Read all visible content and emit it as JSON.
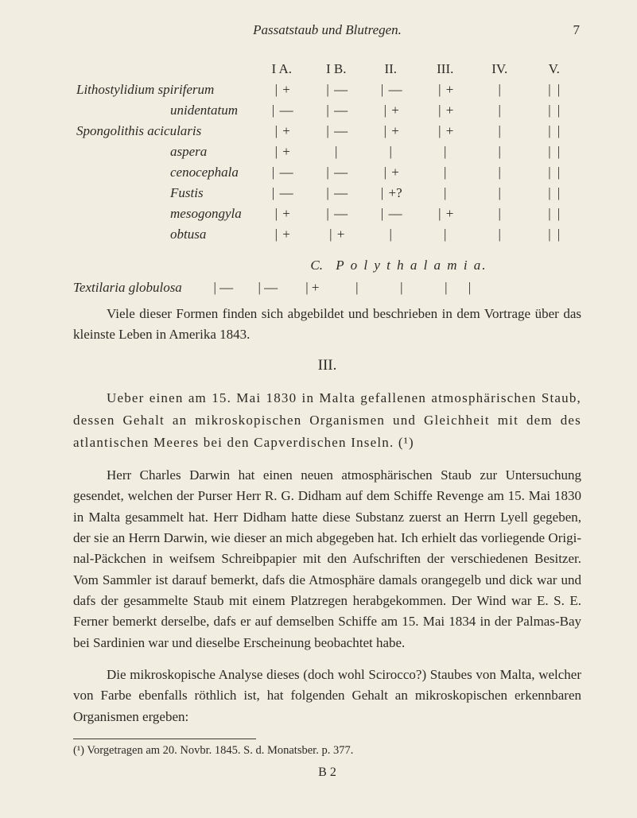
{
  "header": {
    "running_title": "Passatstaub und Blutregen.",
    "page_number": "7"
  },
  "columns": [
    "I A.",
    "I B.",
    "II.",
    "III.",
    "IV.",
    "V."
  ],
  "rows": [
    {
      "name_prefix": "Lithostylidium",
      "name": "spiriferum",
      "cells": [
        "+",
        "—",
        "—",
        "+",
        "",
        ""
      ]
    },
    {
      "name_prefix": "",
      "name": "unidentatum",
      "indent": true,
      "cells": [
        "—",
        "—",
        "+",
        "+",
        "",
        ""
      ]
    },
    {
      "name_prefix": "Spongolithis",
      "name": "acicularis",
      "cells": [
        "+",
        "—",
        "+",
        "+",
        "",
        ""
      ]
    },
    {
      "name_prefix": "",
      "name": "aspera",
      "indent": true,
      "cells": [
        "+",
        "",
        "",
        "",
        "",
        ""
      ]
    },
    {
      "name_prefix": "",
      "name": "cenocephala",
      "indent": true,
      "cells": [
        "—",
        "—",
        "+",
        "",
        "",
        ""
      ]
    },
    {
      "name_prefix": "",
      "name": "Fustis",
      "indent": true,
      "cells": [
        "—",
        "—",
        "+?",
        "",
        "",
        ""
      ]
    },
    {
      "name_prefix": "",
      "name": "mesogongyla",
      "indent": true,
      "cells": [
        "+",
        "—",
        "—",
        "+",
        "",
        ""
      ]
    },
    {
      "name_prefix": "",
      "name": "obtusa",
      "indent": true,
      "cells": [
        "+",
        "+",
        "",
        "",
        "",
        ""
      ]
    }
  ],
  "section_c_label": "C.",
  "section_c_title": "P o l y t h a l a m i a.",
  "poly": {
    "name": "Textilaria globulosa",
    "cells": [
      "—",
      "—",
      "+",
      "",
      "",
      ""
    ]
  },
  "para_after_table": "Viele dieser Formen finden sich abgebildet und beschrieben in dem Vortrage über das kleinste Leben in Amerika 1843.",
  "section_number": "III.",
  "subtitle": "Ueber einen am 15. Mai 1830 in Malta gefallenen atmosphärischen Staub, dessen Gehalt an mikroskopischen Organismen und Gleichheit mit dem des atlantischen Meeres bei den Capver­dischen Inseln. (¹)",
  "para1": "Herr Charles Darwin hat einen neuen atmosphärischen Staub zur Untersuchung gesendet, welchen der Purser Herr R. G. Didham auf dem Schiffe Revenge am 15. Mai 1830 in Malta gesammelt hat. Herr Didham hatte diese Substanz zuerst an Herrn Lyell gegeben, der sie an Herrn Dar­win, wie dieser an mich abgegeben hat. Ich erhielt das vorliegende Origi­nal-Päckchen in weifsem Schreibpapier mit den Aufschriften der verschiedenen Besitzer. Vom Sammler ist darauf bemerkt, dafs die Atmosphäre damals orangegelb und dick war und dafs der gesammelte Staub mit einem Platz­regen herabgekommen. Der Wind war E. S. E. Ferner bemerkt derselbe, dafs er auf demselben Schiffe am 15. Mai 1834 in der Palmas-Bay bei Sar­dinien war und dieselbe Erscheinung beobachtet habe.",
  "para2": "Die mikroskopische Analyse dieses (doch wohl Scirocco?) Staubes von Malta, welcher von Farbe ebenfalls röthlich ist, hat folgenden Gehalt an mikroskopischen erkennbaren Organismen ergeben:",
  "footnote": "(¹)  Vorgetragen am 20. Novbr. 1845. S. d. Monatsber. p. 377.",
  "signature": "B 2"
}
